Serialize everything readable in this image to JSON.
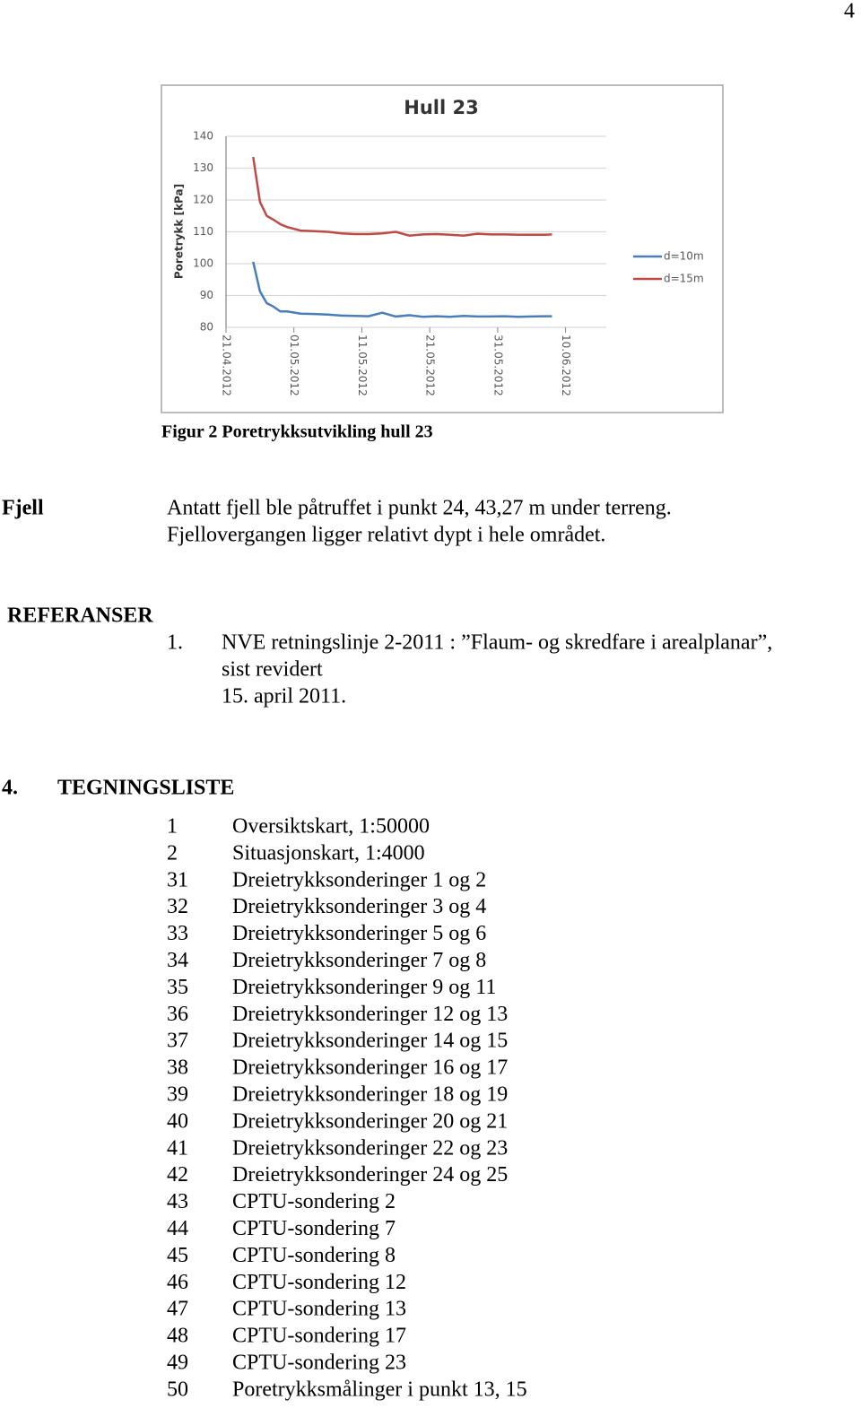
{
  "page_number": "4",
  "chart_data": {
    "type": "line",
    "title": "Hull 23",
    "y_label": "Poretrykk [kPa]",
    "x": [
      "25.04.2012",
      "26.04.2012",
      "27.04.2012",
      "28.04.2012",
      "29.04.2012",
      "30.04.2012",
      "02.05.2012",
      "04.05.2012",
      "06.05.2012",
      "08.05.2012",
      "10.05.2012",
      "12.05.2012",
      "14.05.2012",
      "16.05.2012",
      "18.05.2012",
      "20.05.2012",
      "22.05.2012",
      "24.05.2012",
      "26.05.2012",
      "28.05.2012",
      "30.05.2012",
      "01.06.2012",
      "03.06.2012",
      "05.06.2012",
      "07.06.2012",
      "08.06.2012"
    ],
    "series": [
      {
        "name": "d=10m",
        "color": "#4a7ebb",
        "values": [
          100.6,
          91.3,
          87.6,
          86.5,
          85,
          85,
          84.3,
          84.2,
          84,
          83.7,
          83.6,
          83.5,
          84.6,
          83.4,
          83.8,
          83.3,
          83.5,
          83.3,
          83.6,
          83.4,
          83.4,
          83.5,
          83.3,
          83.4,
          83.5,
          83.5
        ]
      },
      {
        "name": "d=15m",
        "color": "#be4b48",
        "values": [
          133.5,
          119.4,
          115,
          113.8,
          112.4,
          111.5,
          110.4,
          110.2,
          110,
          109.5,
          109.3,
          109.3,
          109.5,
          110,
          108.8,
          109.2,
          109.3,
          109.1,
          108.8,
          109.4,
          109.2,
          109.2,
          109.1,
          109.1,
          109.1,
          109.2
        ]
      }
    ],
    "xlim": [
      "21.04.2012",
      "16.06.2012"
    ],
    "xticks": [
      "21.04.2012",
      "01.05.2012",
      "11.05.2012",
      "21.05.2012",
      "31.05.2012",
      "10.06.2012"
    ],
    "ylim": [
      80,
      140
    ],
    "yticks": [
      80,
      90,
      100,
      110,
      120,
      130,
      140
    ],
    "grid": true,
    "legend": "right"
  },
  "figure_caption": "Figur 2 Poretrykksutvikling hull 23",
  "fjell": {
    "label": "Fjell",
    "lines": [
      "Antatt fjell ble påtruffet i punkt 24, 43,27 m under terreng.",
      "Fjellovergangen ligger relativt dypt i hele området."
    ]
  },
  "references": {
    "heading": "REFERANSER",
    "items": [
      {
        "number": "1.",
        "lines": [
          "NVE retningslinje 2-2011 : ”Flaum- og skredfare i arealplanar”,",
          "sist revidert",
          "15. april 2011."
        ]
      }
    ]
  },
  "drawing_list": {
    "number": "4.",
    "heading": "TEGNINGSLISTE",
    "rows": [
      [
        "1",
        "Oversiktskart, 1:50000"
      ],
      [
        "2",
        "Situasjonskart, 1:4000"
      ],
      [
        "31",
        "Dreietrykksonderinger 1 og 2"
      ],
      [
        "32",
        "Dreietrykksonderinger 3 og 4"
      ],
      [
        "33",
        "Dreietrykksonderinger 5 og 6"
      ],
      [
        "34",
        "Dreietrykksonderinger 7 og 8"
      ],
      [
        "35",
        "Dreietrykksonderinger 9 og 11"
      ],
      [
        "36",
        "Dreietrykksonderinger 12 og 13"
      ],
      [
        "37",
        "Dreietrykksonderinger 14 og 15"
      ],
      [
        "38",
        "Dreietrykksonderinger 16 og 17"
      ],
      [
        "39",
        "Dreietrykksonderinger 18 og 19"
      ],
      [
        "40",
        "Dreietrykksonderinger 20 og 21"
      ],
      [
        "41",
        "Dreietrykksonderinger 22 og 23"
      ],
      [
        "42",
        "Dreietrykksonderinger 24 og 25"
      ],
      [
        "43",
        "CPTU-sondering 2"
      ],
      [
        "44",
        "CPTU-sondering 7"
      ],
      [
        "45",
        "CPTU-sondering 8"
      ],
      [
        "46",
        "CPTU-sondering 12"
      ],
      [
        "47",
        "CPTU-sondering 13"
      ],
      [
        "48",
        "CPTU-sondering 17"
      ],
      [
        "49",
        "CPTU-sondering 23"
      ],
      [
        "50",
        "Poretrykksmålinger i punkt 13, 15"
      ]
    ]
  }
}
